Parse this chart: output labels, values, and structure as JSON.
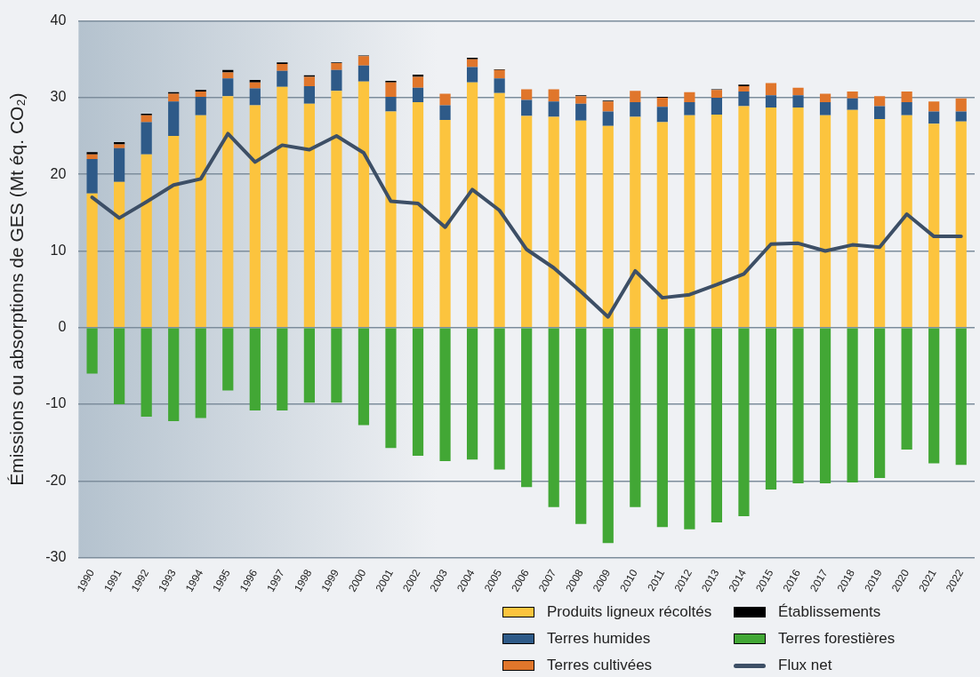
{
  "chart_data": {
    "type": "bar",
    "stacked": true,
    "ylabel": "Émissions ou absorptions de GES (Mt éq. CO₂)",
    "categories": [
      "1990",
      "1991",
      "1992",
      "1993",
      "1994",
      "1995",
      "1996",
      "1997",
      "1998",
      "1999",
      "2000",
      "2001",
      "2002",
      "2003",
      "2004",
      "2005",
      "2006",
      "2007",
      "2008",
      "2009",
      "2010",
      "2011",
      "2012",
      "2013",
      "2014",
      "2015",
      "2016",
      "2017",
      "2018",
      "2019",
      "2020",
      "2021",
      "2022"
    ],
    "ylim": [
      -30,
      40
    ],
    "yticks": [
      -30,
      -20,
      -10,
      0,
      10,
      20,
      30,
      40
    ],
    "grid": "y",
    "legend": "bottom right",
    "series": [
      {
        "name": "Produits ligneux récoltés",
        "color": "#fcc43e",
        "values": [
          17.5,
          19.0,
          22.6,
          25.0,
          27.7,
          30.2,
          29.0,
          31.4,
          29.2,
          30.9,
          32.1,
          28.2,
          29.4,
          27.1,
          32.0,
          30.6,
          27.6,
          27.5,
          27.0,
          26.3,
          27.5,
          26.8,
          27.7,
          27.8,
          28.9,
          28.7,
          28.7,
          27.7,
          28.4,
          27.2,
          27.7,
          26.6,
          26.9
        ]
      },
      {
        "name": "Terres humides",
        "color": "#2e5a88",
        "values": [
          4.5,
          4.4,
          4.2,
          4.5,
          2.4,
          2.3,
          2.2,
          2.1,
          2.3,
          2.7,
          2.1,
          1.9,
          1.9,
          1.9,
          2.0,
          1.9,
          2.1,
          2.0,
          2.2,
          1.9,
          1.9,
          2.0,
          1.7,
          2.2,
          1.9,
          1.6,
          1.6,
          1.7,
          1.5,
          1.7,
          1.7,
          1.6,
          1.3
        ]
      },
      {
        "name": "Terres cultivées",
        "color": "#e0762b",
        "values": [
          0.6,
          0.5,
          0.9,
          1.0,
          0.7,
          0.8,
          0.8,
          0.9,
          1.2,
          0.9,
          1.2,
          1.9,
          1.4,
          1.5,
          1.0,
          1.1,
          1.4,
          1.6,
          1.0,
          1.3,
          1.5,
          1.2,
          1.3,
          1.0,
          0.7,
          1.6,
          1.0,
          1.1,
          0.9,
          1.3,
          1.4,
          1.3,
          1.7
        ]
      },
      {
        "name": "Établissements",
        "color": "#000000",
        "values": [
          0.3,
          0.3,
          0.2,
          0.2,
          0.2,
          0.3,
          0.3,
          0.2,
          0.2,
          0.1,
          0.1,
          0.2,
          0.3,
          null,
          0.2,
          0.1,
          null,
          null,
          0.1,
          0.1,
          0.0,
          0.1,
          0.0,
          0.1,
          0.2,
          0.0,
          0.0,
          0.0,
          0.0,
          0.0,
          0.0,
          null,
          null
        ]
      },
      {
        "name": "Terres forestières",
        "color": "#42a735",
        "values": [
          -6.0,
          -10.0,
          -11.6,
          -12.2,
          -11.8,
          -8.2,
          -10.8,
          -10.8,
          -9.8,
          -9.8,
          -12.7,
          -15.7,
          -16.7,
          -17.4,
          -17.2,
          -18.5,
          -20.8,
          -23.4,
          -25.6,
          -28.1,
          -23.4,
          -26.0,
          -26.3,
          -25.4,
          -24.6,
          -21.1,
          -20.3,
          -20.3,
          -20.2,
          -19.6,
          -15.9,
          -17.7,
          -17.9
        ]
      },
      {
        "name": "Flux net",
        "type": "line",
        "color": "#3d4f66",
        "values": [
          17.0,
          14.3,
          16.4,
          18.6,
          19.4,
          25.3,
          21.6,
          23.8,
          23.2,
          25.0,
          22.8,
          16.5,
          16.2,
          13.1,
          18.0,
          15.3,
          10.2,
          7.8,
          4.7,
          1.4,
          7.4,
          3.9,
          4.3,
          5.6,
          7.0,
          10.9,
          11.0,
          10.0,
          10.8,
          10.5,
          14.8,
          11.9,
          11.9
        ]
      }
    ]
  }
}
